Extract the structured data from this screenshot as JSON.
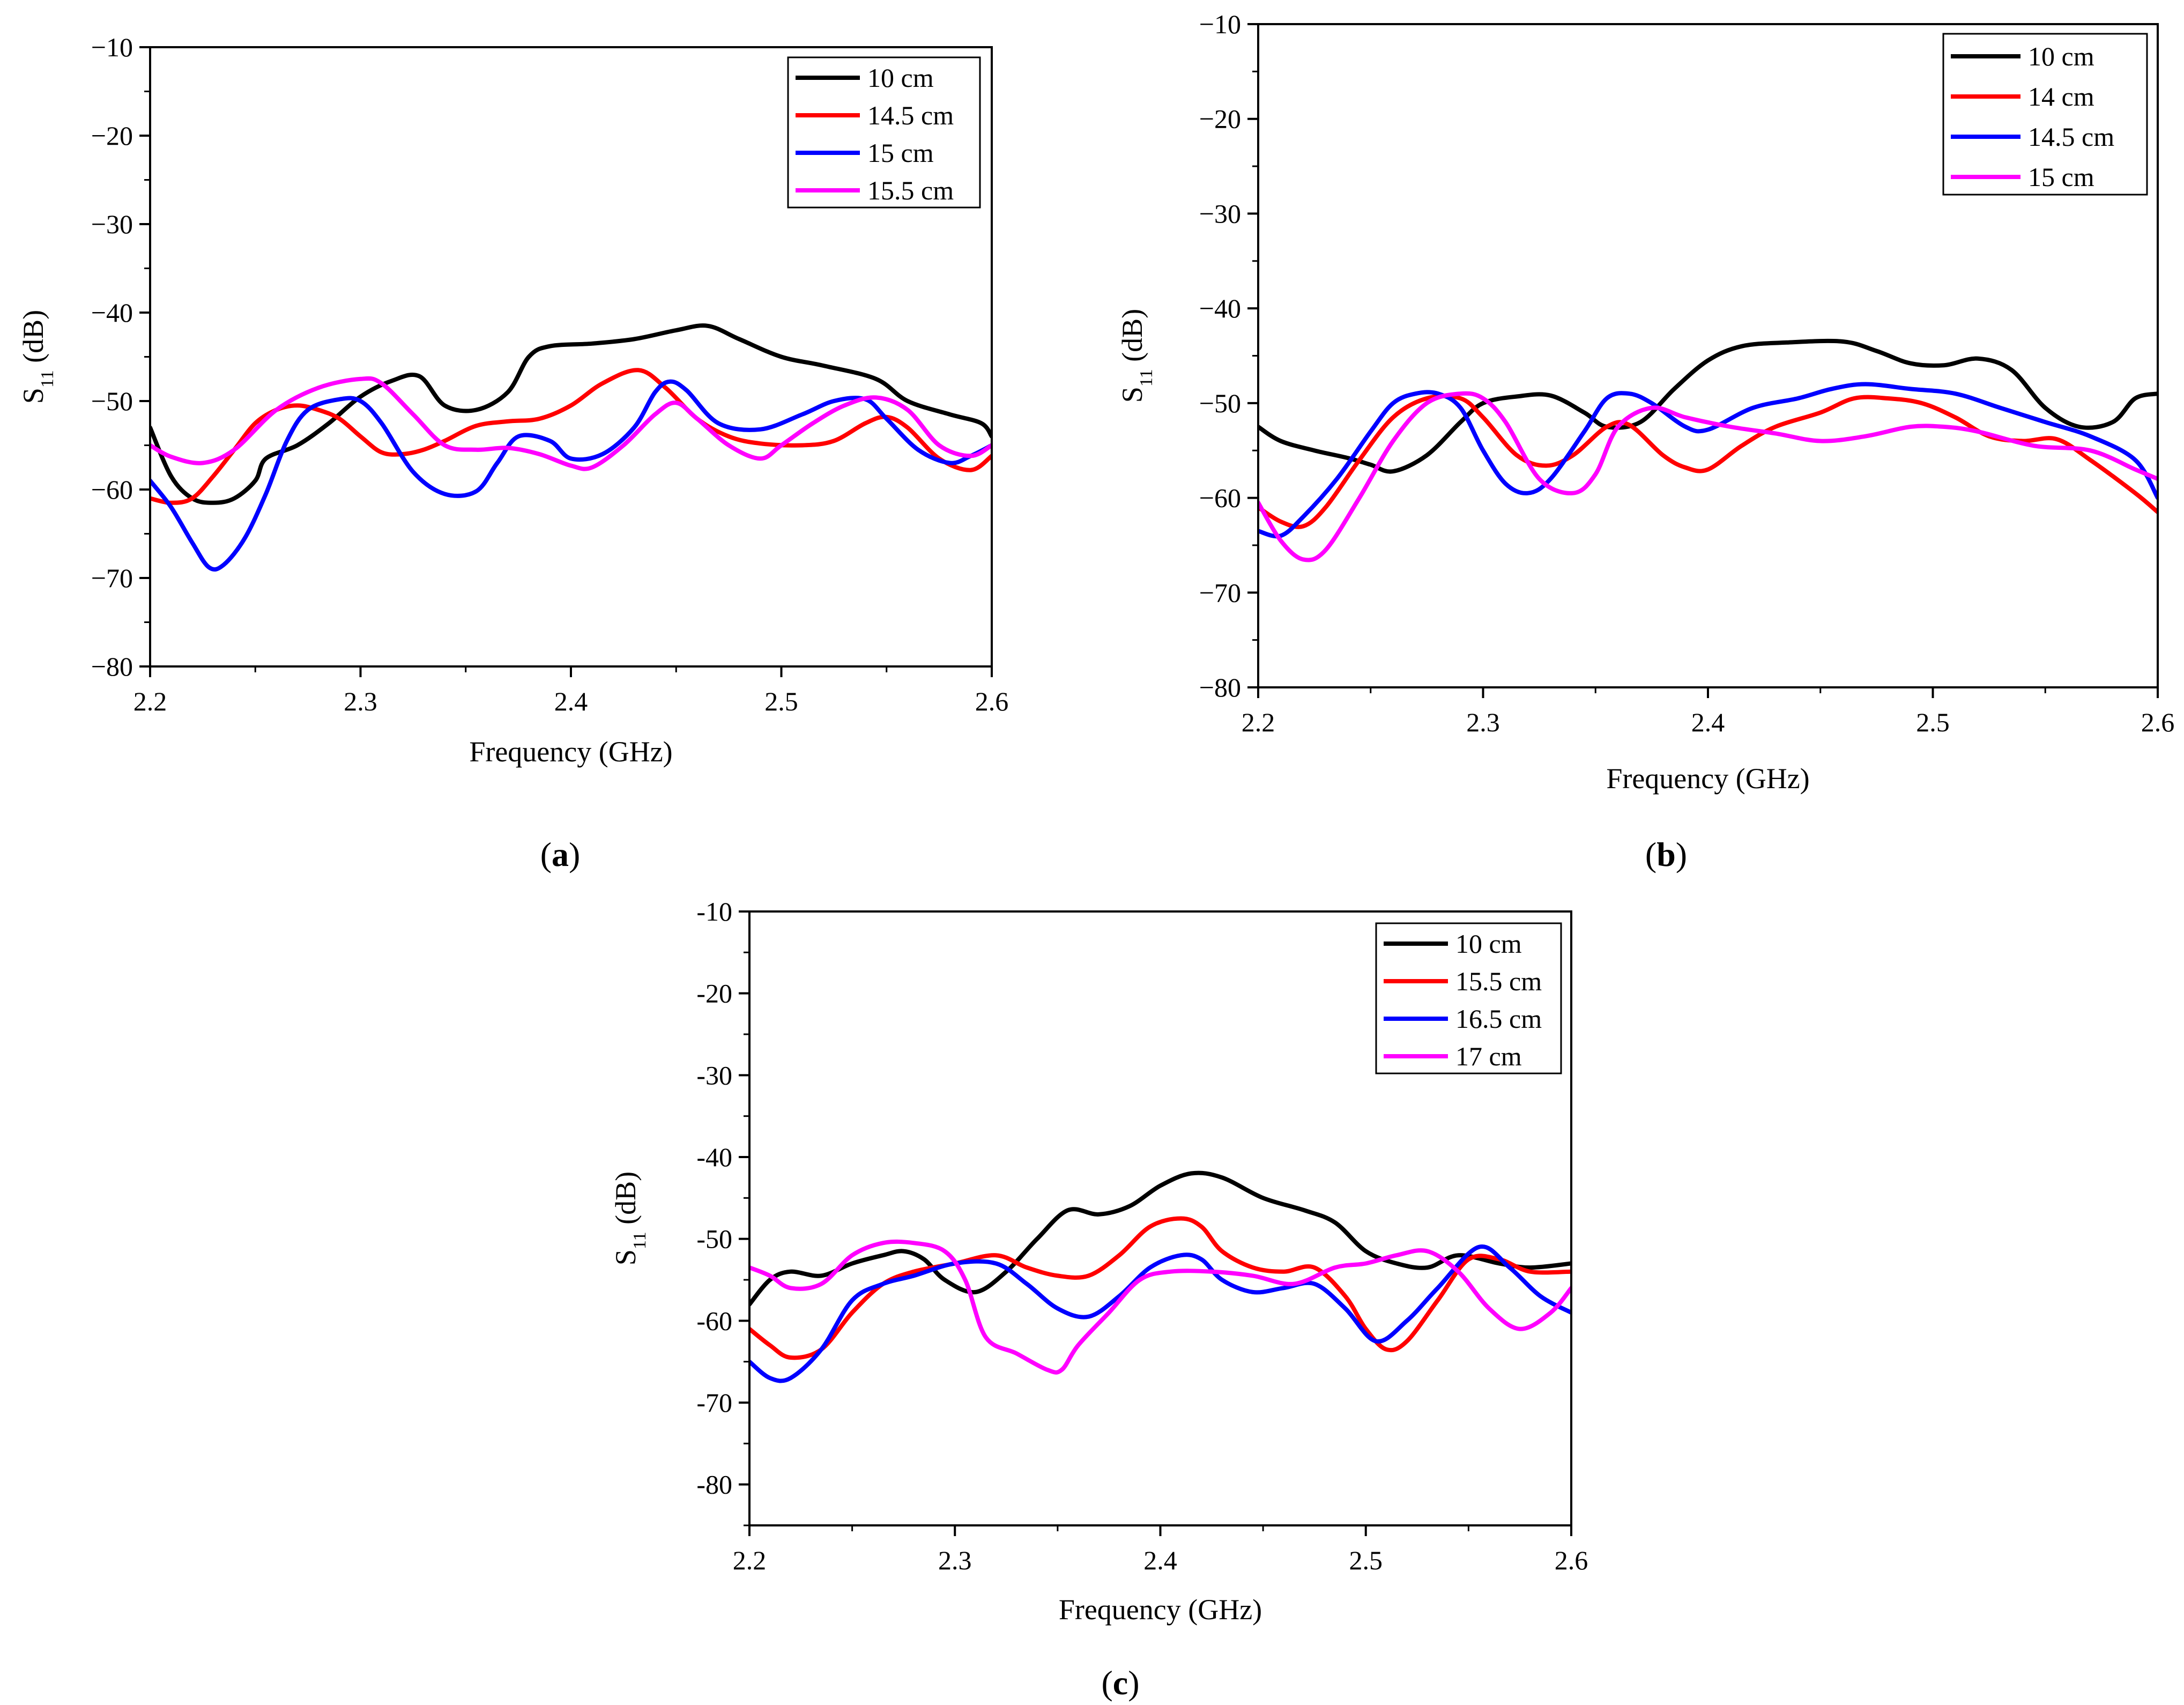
{
  "chart_data": [
    {
      "panel": "a",
      "panel_label": "a",
      "type": "line",
      "xlabel": "Frequency (GHz)",
      "ylabel_main": "S",
      "ylabel_sub": "11",
      "ylabel_unit": " (dB)",
      "xlim": [
        2.2,
        2.6
      ],
      "ylim": [
        -80,
        -10
      ],
      "xticks": [
        2.2,
        2.3,
        2.4,
        2.5,
        2.6
      ],
      "xtick_labels": [
        "2.2",
        "2.3",
        "2.4",
        "2.5",
        "2.6"
      ],
      "yticks": [
        -80,
        -70,
        -60,
        -50,
        -40,
        -30,
        -20,
        -10
      ],
      "ytick_labels": [
        "−80",
        "−70",
        "−60",
        "−50",
        "−40",
        "−30",
        "−20",
        "−10"
      ],
      "grid": false,
      "legend_position": "top-right",
      "series": [
        {
          "name": "10 cm",
          "color": "#000000",
          "x": [
            2.2,
            2.21,
            2.22,
            2.23,
            2.24,
            2.25,
            2.255,
            2.27,
            2.285,
            2.3,
            2.315,
            2.328,
            2.34,
            2.355,
            2.37,
            2.38,
            2.39,
            2.41,
            2.43,
            2.45,
            2.465,
            2.48,
            2.5,
            2.52,
            2.545,
            2.56,
            2.58,
            2.595,
            2.6
          ],
          "y": [
            -53,
            -58.5,
            -61,
            -61.5,
            -61,
            -59,
            -56.5,
            -55,
            -52.5,
            -49.5,
            -47.7,
            -47.2,
            -50.5,
            -51,
            -49,
            -45,
            -43.8,
            -43.5,
            -43,
            -42,
            -41.5,
            -43,
            -45,
            -46,
            -47.5,
            -50,
            -51.5,
            -52.5,
            -54
          ]
        },
        {
          "name": "14.5 cm",
          "color": "#ff0000",
          "x": [
            2.2,
            2.21,
            2.22,
            2.23,
            2.24,
            2.25,
            2.26,
            2.27,
            2.28,
            2.29,
            2.3,
            2.31,
            2.32,
            2.33,
            2.34,
            2.355,
            2.37,
            2.385,
            2.4,
            2.415,
            2.432,
            2.445,
            2.46,
            2.475,
            2.49,
            2.51,
            2.525,
            2.54,
            2.55,
            2.56,
            2.575,
            2.59,
            2.6
          ],
          "y": [
            -61,
            -61.5,
            -61,
            -58.5,
            -55.5,
            -52.5,
            -51,
            -50.5,
            -51,
            -52,
            -54,
            -55.8,
            -56,
            -55.5,
            -54.5,
            -52.8,
            -52.3,
            -52,
            -50.5,
            -48,
            -46.5,
            -48.5,
            -52,
            -54,
            -54.8,
            -55,
            -54.5,
            -52.5,
            -51.8,
            -53,
            -56.5,
            -57.8,
            -56.2
          ]
        },
        {
          "name": "15 cm",
          "color": "#0000ff",
          "x": [
            2.2,
            2.21,
            2.22,
            2.228,
            2.235,
            2.245,
            2.255,
            2.265,
            2.275,
            2.29,
            2.3,
            2.31,
            2.325,
            2.34,
            2.355,
            2.365,
            2.375,
            2.39,
            2.4,
            2.415,
            2.43,
            2.44,
            2.447,
            2.455,
            2.47,
            2.49,
            2.51,
            2.525,
            2.54,
            2.55,
            2.565,
            2.58,
            2.59,
            2.6
          ],
          "y": [
            -59,
            -62,
            -66,
            -68.8,
            -68.5,
            -65.5,
            -60.5,
            -54.5,
            -51,
            -49.8,
            -50,
            -52.5,
            -58,
            -60.5,
            -60.2,
            -57,
            -54,
            -54.5,
            -56.5,
            -56,
            -53,
            -49,
            -47.8,
            -48.8,
            -52.5,
            -53.2,
            -51.5,
            -50,
            -49.8,
            -52,
            -55.5,
            -57,
            -56.2,
            -55
          ]
        },
        {
          "name": "15.5 cm",
          "color": "#ff00ff",
          "x": [
            2.2,
            2.21,
            2.225,
            2.24,
            2.26,
            2.28,
            2.3,
            2.31,
            2.325,
            2.34,
            2.355,
            2.37,
            2.385,
            2.4,
            2.41,
            2.425,
            2.44,
            2.45,
            2.46,
            2.475,
            2.49,
            2.5,
            2.515,
            2.53,
            2.545,
            2.56,
            2.575,
            2.59,
            2.6
          ],
          "y": [
            -55,
            -56.3,
            -57,
            -55.5,
            -51,
            -48.5,
            -47.5,
            -48,
            -51.5,
            -55,
            -55.5,
            -55.3,
            -56,
            -57.3,
            -57.5,
            -55,
            -51.5,
            -50.2,
            -52,
            -55,
            -56.5,
            -55,
            -52.5,
            -50.5,
            -49.6,
            -51,
            -55,
            -56.2,
            -55
          ]
        }
      ]
    },
    {
      "panel": "b",
      "panel_label": "b",
      "type": "line",
      "xlabel": "Frequency (GHz)",
      "ylabel_main": "S",
      "ylabel_sub": "11",
      "ylabel_unit": " (dB)",
      "xlim": [
        2.2,
        2.6
      ],
      "ylim": [
        -80,
        -10
      ],
      "xticks": [
        2.2,
        2.3,
        2.4,
        2.5,
        2.6
      ],
      "xtick_labels": [
        "2.2",
        "2.3",
        "2.4",
        "2.5",
        "2.6"
      ],
      "yticks": [
        -80,
        -70,
        -60,
        -50,
        -40,
        -30,
        -20,
        -10
      ],
      "ytick_labels": [
        "−80",
        "−70",
        "−60",
        "−50",
        "−40",
        "−30",
        "−20",
        "−10"
      ],
      "grid": false,
      "legend_position": "top-right",
      "series": [
        {
          "name": "10 cm",
          "color": "#000000",
          "x": [
            2.2,
            2.21,
            2.225,
            2.24,
            2.25,
            2.26,
            2.275,
            2.29,
            2.3,
            2.315,
            2.33,
            2.345,
            2.355,
            2.37,
            2.385,
            2.4,
            2.415,
            2.435,
            2.46,
            2.475,
            2.49,
            2.505,
            2.52,
            2.535,
            2.55,
            2.565,
            2.58,
            2.59,
            2.6
          ],
          "y": [
            -52.5,
            -54,
            -55,
            -55.8,
            -56.5,
            -57.2,
            -55.5,
            -52,
            -50,
            -49.3,
            -49.2,
            -51,
            -52.5,
            -52,
            -48.5,
            -45.5,
            -44,
            -43.6,
            -43.5,
            -44.5,
            -45.8,
            -46,
            -45.3,
            -46.5,
            -50.5,
            -52.5,
            -52,
            -49.5,
            -49
          ]
        },
        {
          "name": "14 cm",
          "color": "#ff0000",
          "x": [
            2.2,
            2.21,
            2.22,
            2.23,
            2.245,
            2.26,
            2.275,
            2.29,
            2.3,
            2.315,
            2.328,
            2.34,
            2.355,
            2.365,
            2.38,
            2.39,
            2.4,
            2.415,
            2.43,
            2.45,
            2.465,
            2.48,
            2.495,
            2.51,
            2.525,
            2.54,
            2.555,
            2.57,
            2.59,
            2.6
          ],
          "y": [
            -61,
            -62.5,
            -63,
            -61,
            -56,
            -51.5,
            -49.5,
            -49.5,
            -51.5,
            -55.5,
            -56.6,
            -55.5,
            -52.5,
            -52.3,
            -55.5,
            -56.8,
            -57,
            -54.5,
            -52.5,
            -51,
            -49.5,
            -49.5,
            -50,
            -51.5,
            -53.5,
            -54,
            -53.8,
            -56,
            -59.5,
            -61.5
          ]
        },
        {
          "name": "14.5 cm",
          "color": "#0000ff",
          "x": [
            2.2,
            2.21,
            2.22,
            2.235,
            2.25,
            2.26,
            2.27,
            2.28,
            2.29,
            2.3,
            2.31,
            2.32,
            2.33,
            2.345,
            2.355,
            2.365,
            2.375,
            2.39,
            2.4,
            2.42,
            2.44,
            2.455,
            2.47,
            2.49,
            2.51,
            2.53,
            2.55,
            2.57,
            2.59,
            2.6
          ],
          "y": [
            -63.5,
            -64,
            -62,
            -58,
            -53,
            -50,
            -49,
            -49,
            -50.5,
            -55,
            -58.5,
            -59.5,
            -58,
            -53,
            -49.5,
            -49,
            -50,
            -52.5,
            -52.8,
            -50.5,
            -49.5,
            -48.5,
            -48,
            -48.5,
            -49,
            -50.5,
            -52,
            -53.5,
            -56,
            -60
          ]
        },
        {
          "name": "15 cm",
          "color": "#ff00ff",
          "x": [
            2.2,
            2.21,
            2.22,
            2.23,
            2.245,
            2.26,
            2.275,
            2.29,
            2.3,
            2.31,
            2.325,
            2.34,
            2.35,
            2.36,
            2.375,
            2.39,
            2.41,
            2.43,
            2.45,
            2.47,
            2.49,
            2.505,
            2.52,
            2.545,
            2.57,
            2.59,
            2.6
          ],
          "y": [
            -60.5,
            -64.5,
            -66.5,
            -65.5,
            -60,
            -54,
            -50,
            -49,
            -49.5,
            -52,
            -58,
            -59.5,
            -57.5,
            -52.5,
            -50.5,
            -51.5,
            -52.5,
            -53.2,
            -54,
            -53.5,
            -52.5,
            -52.5,
            -53,
            -54.5,
            -55,
            -57,
            -58
          ]
        }
      ]
    },
    {
      "panel": "c",
      "panel_label": "c",
      "type": "line",
      "xlabel": "Frequency (GHz)",
      "ylabel_main": "S",
      "ylabel_sub": "11",
      "ylabel_unit": " (dB)",
      "xlim": [
        2.2,
        2.6
      ],
      "ylim": [
        -85,
        -10
      ],
      "xticks": [
        2.2,
        2.3,
        2.4,
        2.5,
        2.6
      ],
      "xtick_labels": [
        "2.2",
        "2.3",
        "2.4",
        "2.5",
        "2.6"
      ],
      "yticks": [
        -80,
        -70,
        -60,
        -50,
        -40,
        -30,
        -20,
        -10
      ],
      "ytick_labels": [
        "-80",
        "-70",
        "-60",
        "-50",
        "-40",
        "-30",
        "-20",
        "-10"
      ],
      "grid": false,
      "legend_position": "top-right",
      "series": [
        {
          "name": "10 cm",
          "color": "#000000",
          "x": [
            2.2,
            2.21,
            2.22,
            2.235,
            2.25,
            2.265,
            2.275,
            2.285,
            2.295,
            2.31,
            2.325,
            2.34,
            2.355,
            2.37,
            2.385,
            2.4,
            2.415,
            2.43,
            2.45,
            2.47,
            2.485,
            2.5,
            2.515,
            2.53,
            2.545,
            2.565,
            2.58,
            2.6
          ],
          "y": [
            -58,
            -55,
            -54,
            -54.5,
            -53,
            -52,
            -51.5,
            -52.5,
            -55,
            -56.5,
            -54,
            -50,
            -46.5,
            -47,
            -46,
            -43.5,
            -42,
            -42.5,
            -45,
            -46.5,
            -48,
            -51.5,
            -53,
            -53.5,
            -52,
            -53,
            -53.5,
            -53
          ]
        },
        {
          "name": "15.5 cm",
          "color": "#ff0000",
          "x": [
            2.2,
            2.21,
            2.22,
            2.235,
            2.25,
            2.265,
            2.28,
            2.3,
            2.32,
            2.335,
            2.35,
            2.365,
            2.38,
            2.395,
            2.41,
            2.42,
            2.43,
            2.445,
            2.46,
            2.475,
            2.49,
            2.5,
            2.51,
            2.52,
            2.535,
            2.55,
            2.565,
            2.58,
            2.6
          ],
          "y": [
            -61,
            -63,
            -64.5,
            -63.5,
            -59,
            -55.5,
            -54,
            -53,
            -52,
            -53.5,
            -54.5,
            -54.5,
            -52,
            -48.5,
            -47.5,
            -48.5,
            -51.5,
            -53.5,
            -54,
            -53.5,
            -57,
            -61,
            -63.5,
            -62.5,
            -57.5,
            -52.5,
            -52.5,
            -54,
            -54
          ]
        },
        {
          "name": "16.5 cm",
          "color": "#0000ff",
          "x": [
            2.2,
            2.21,
            2.22,
            2.235,
            2.25,
            2.265,
            2.28,
            2.3,
            2.32,
            2.335,
            2.35,
            2.365,
            2.38,
            2.395,
            2.41,
            2.42,
            2.43,
            2.445,
            2.46,
            2.475,
            2.49,
            2.505,
            2.52,
            2.535,
            2.555,
            2.57,
            2.585,
            2.6
          ],
          "y": [
            -65,
            -67,
            -67,
            -63.5,
            -57.5,
            -55.5,
            -54.5,
            -53,
            -53,
            -55.5,
            -58.5,
            -59.5,
            -57,
            -53.5,
            -52,
            -52.5,
            -55,
            -56.5,
            -56,
            -55.5,
            -58.5,
            -62.5,
            -60,
            -56,
            -51,
            -53.5,
            -57,
            -59
          ]
        },
        {
          "name": "17 cm",
          "color": "#ff00ff",
          "x": [
            2.2,
            2.21,
            2.22,
            2.235,
            2.25,
            2.265,
            2.28,
            2.295,
            2.305,
            2.315,
            2.33,
            2.345,
            2.352,
            2.36,
            2.375,
            2.39,
            2.405,
            2.425,
            2.445,
            2.465,
            2.485,
            2.5,
            2.515,
            2.53,
            2.545,
            2.56,
            2.575,
            2.59,
            2.6
          ],
          "y": [
            -53.5,
            -54.5,
            -56,
            -55.5,
            -52,
            -50.5,
            -50.5,
            -51.5,
            -55,
            -62,
            -64,
            -66,
            -66,
            -63,
            -59,
            -55,
            -54,
            -54,
            -54.5,
            -55.5,
            -53.5,
            -53,
            -52,
            -51.5,
            -54,
            -58.5,
            -61,
            -59,
            -56
          ]
        }
      ]
    }
  ]
}
